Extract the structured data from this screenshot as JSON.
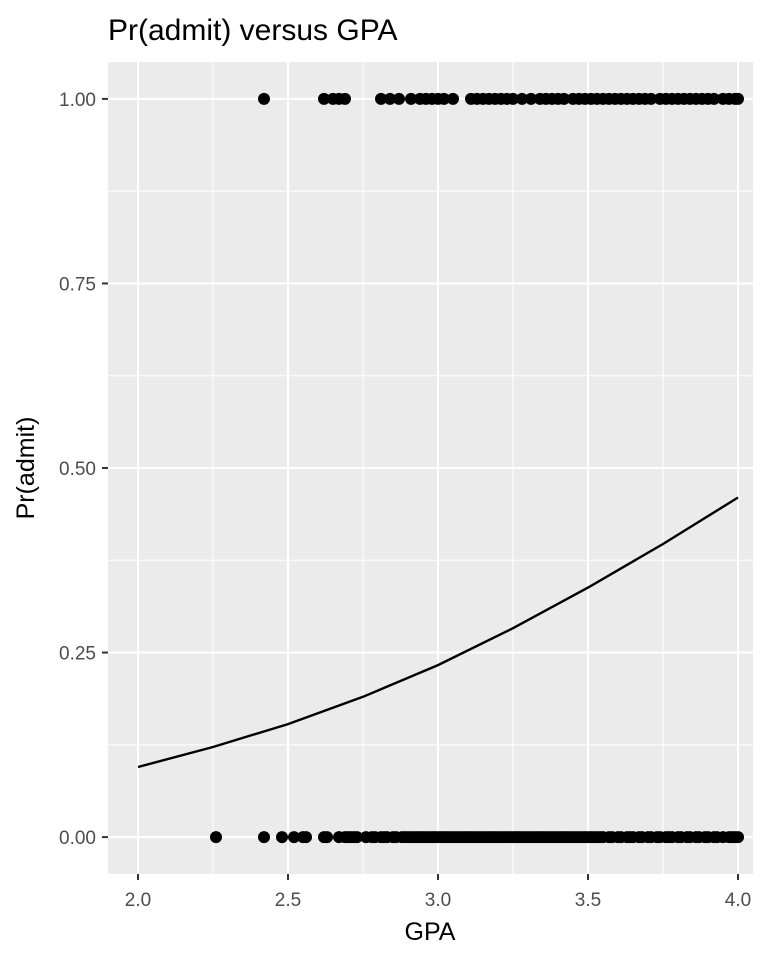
{
  "chart_data": {
    "type": "scatter",
    "title": "Pr(admit) versus GPA",
    "xlabel": "GPA",
    "ylabel": "Pr(admit)",
    "xlim": [
      1.9,
      4.05
    ],
    "ylim": [
      -0.05,
      1.05
    ],
    "x_ticks": [
      2.0,
      2.5,
      3.0,
      3.5,
      4.0
    ],
    "x_tick_labels": [
      "2.0",
      "2.5",
      "3.0",
      "3.5",
      "4.0"
    ],
    "y_ticks": [
      0.0,
      0.25,
      0.5,
      0.75,
      1.0
    ],
    "y_tick_labels": [
      "0.00",
      "0.25",
      "0.50",
      "0.75",
      "1.00"
    ],
    "grid": true,
    "legend": "none",
    "series": [
      {
        "kind": "points",
        "y": 1,
        "x": [
          2.42,
          2.62,
          2.65,
          2.67,
          2.69,
          2.81,
          2.84,
          2.87,
          2.91,
          2.94,
          2.96,
          2.98,
          3.0,
          3.02,
          3.05,
          3.11,
          3.13,
          3.15,
          3.17,
          3.19,
          3.21,
          3.23,
          3.25,
          3.28,
          3.31,
          3.34,
          3.36,
          3.38,
          3.4,
          3.42,
          3.45,
          3.47,
          3.49,
          3.51,
          3.53,
          3.55,
          3.57,
          3.59,
          3.61,
          3.63,
          3.65,
          3.67,
          3.69,
          3.71,
          3.74,
          3.76,
          3.78,
          3.8,
          3.82,
          3.84,
          3.86,
          3.88,
          3.9,
          3.92,
          3.95,
          3.97,
          3.99,
          4.0
        ]
      },
      {
        "kind": "points",
        "y": 0,
        "x": [
          2.26,
          2.42,
          2.48,
          2.52,
          2.55,
          2.56,
          2.62,
          2.63,
          2.67,
          2.69,
          2.7,
          2.71,
          2.72,
          2.73,
          2.76,
          2.78,
          2.79,
          2.81,
          2.82,
          2.83,
          2.85,
          2.86,
          2.88,
          2.89,
          2.9,
          2.91,
          2.92,
          2.93,
          2.94,
          2.95,
          2.96,
          2.97,
          2.98,
          2.99,
          3.0,
          3.01,
          3.02,
          3.03,
          3.04,
          3.05,
          3.06,
          3.07,
          3.08,
          3.09,
          3.1,
          3.11,
          3.12,
          3.13,
          3.14,
          3.15,
          3.16,
          3.17,
          3.18,
          3.19,
          3.2,
          3.21,
          3.22,
          3.23,
          3.24,
          3.25,
          3.26,
          3.27,
          3.28,
          3.29,
          3.3,
          3.31,
          3.32,
          3.33,
          3.34,
          3.35,
          3.36,
          3.37,
          3.38,
          3.39,
          3.4,
          3.41,
          3.42,
          3.43,
          3.44,
          3.45,
          3.46,
          3.47,
          3.48,
          3.49,
          3.5,
          3.51,
          3.52,
          3.53,
          3.54,
          3.55,
          3.57,
          3.58,
          3.6,
          3.61,
          3.63,
          3.64,
          3.65,
          3.67,
          3.68,
          3.7,
          3.71,
          3.73,
          3.74,
          3.76,
          3.77,
          3.78,
          3.8,
          3.81,
          3.83,
          3.84,
          3.86,
          3.87,
          3.89,
          3.9,
          3.92,
          3.93,
          3.95,
          3.97,
          3.98,
          3.99,
          4.0
        ]
      },
      {
        "kind": "line",
        "x": [
          2.0,
          2.25,
          2.5,
          2.75,
          3.0,
          3.25,
          3.5,
          3.75,
          4.0
        ],
        "y": [
          0.095,
          0.122,
          0.153,
          0.19,
          0.233,
          0.283,
          0.338,
          0.397,
          0.46
        ]
      }
    ]
  }
}
